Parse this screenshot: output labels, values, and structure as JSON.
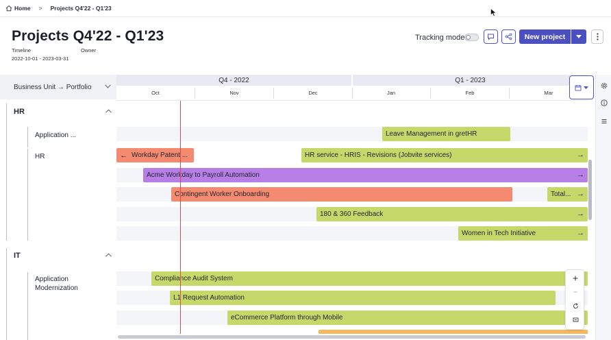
{
  "breadcrumb": {
    "home": "Home",
    "current": "Projects Q4'22 - Q1'23"
  },
  "header": {
    "title": "Projects Q4'22 - Q1'23",
    "timeline_label": "Timeline",
    "owner_label": "Owner",
    "timeline_value": "2022-10-01 - 2023-03-31",
    "tracking_label": "Tracking mode",
    "new_project_label": "New project"
  },
  "grouping": {
    "label": "Business Unit → Portfolio"
  },
  "timeline": {
    "quarters": [
      "Q4 - 2022",
      "Q1 - 2023"
    ],
    "months": [
      "Oct",
      "Nov",
      "Dec",
      "Jan",
      "Feb",
      "Mar"
    ]
  },
  "groups": [
    {
      "name": "HR",
      "portfolios": [
        "Application ...",
        "HR"
      ]
    },
    {
      "name": "IT",
      "portfolios": [
        "Application Modernization"
      ]
    }
  ],
  "projects": [
    {
      "name": "Leave Management in gretHR",
      "color": "#c6d86a"
    },
    {
      "name": "Workday Patent ...",
      "color": "#f48a6f"
    },
    {
      "name": "HR service - HRIS - Revisions (Jobvite services)",
      "color": "#c6d86a"
    },
    {
      "name": "Acme Workday to Payroll Automation",
      "color": "#b77ee6"
    },
    {
      "name": "Contingent Worker Onboarding",
      "color": "#f48a6f"
    },
    {
      "name": "Total...",
      "color": "#c6d86a"
    },
    {
      "name": "180 & 360 Feedback",
      "color": "#c6d86a"
    },
    {
      "name": "Women in Tech Initiative",
      "color": "#c6d86a"
    },
    {
      "name": "Compliance Audit System",
      "color": "#c6d86a"
    },
    {
      "name": "L1 Request Automation",
      "color": "#c6d86a"
    },
    {
      "name": "eCommerce Platform through Mobile",
      "color": "#c6d86a"
    }
  ],
  "icons": {
    "home": "home-icon",
    "comment": "comment-icon",
    "share": "share-icon",
    "caret": "caret-down-icon",
    "more": "more-vertical-icon",
    "calendar": "calendar-icon",
    "settings": "gear-icon",
    "info": "info-icon",
    "list": "list-icon",
    "zoom_in": "plus-icon",
    "zoom_out": "minus-icon",
    "reset": "reset-icon",
    "fit": "fit-icon"
  },
  "colors": {
    "accent": "#4b4fc0",
    "today_line": "#e0474c"
  }
}
